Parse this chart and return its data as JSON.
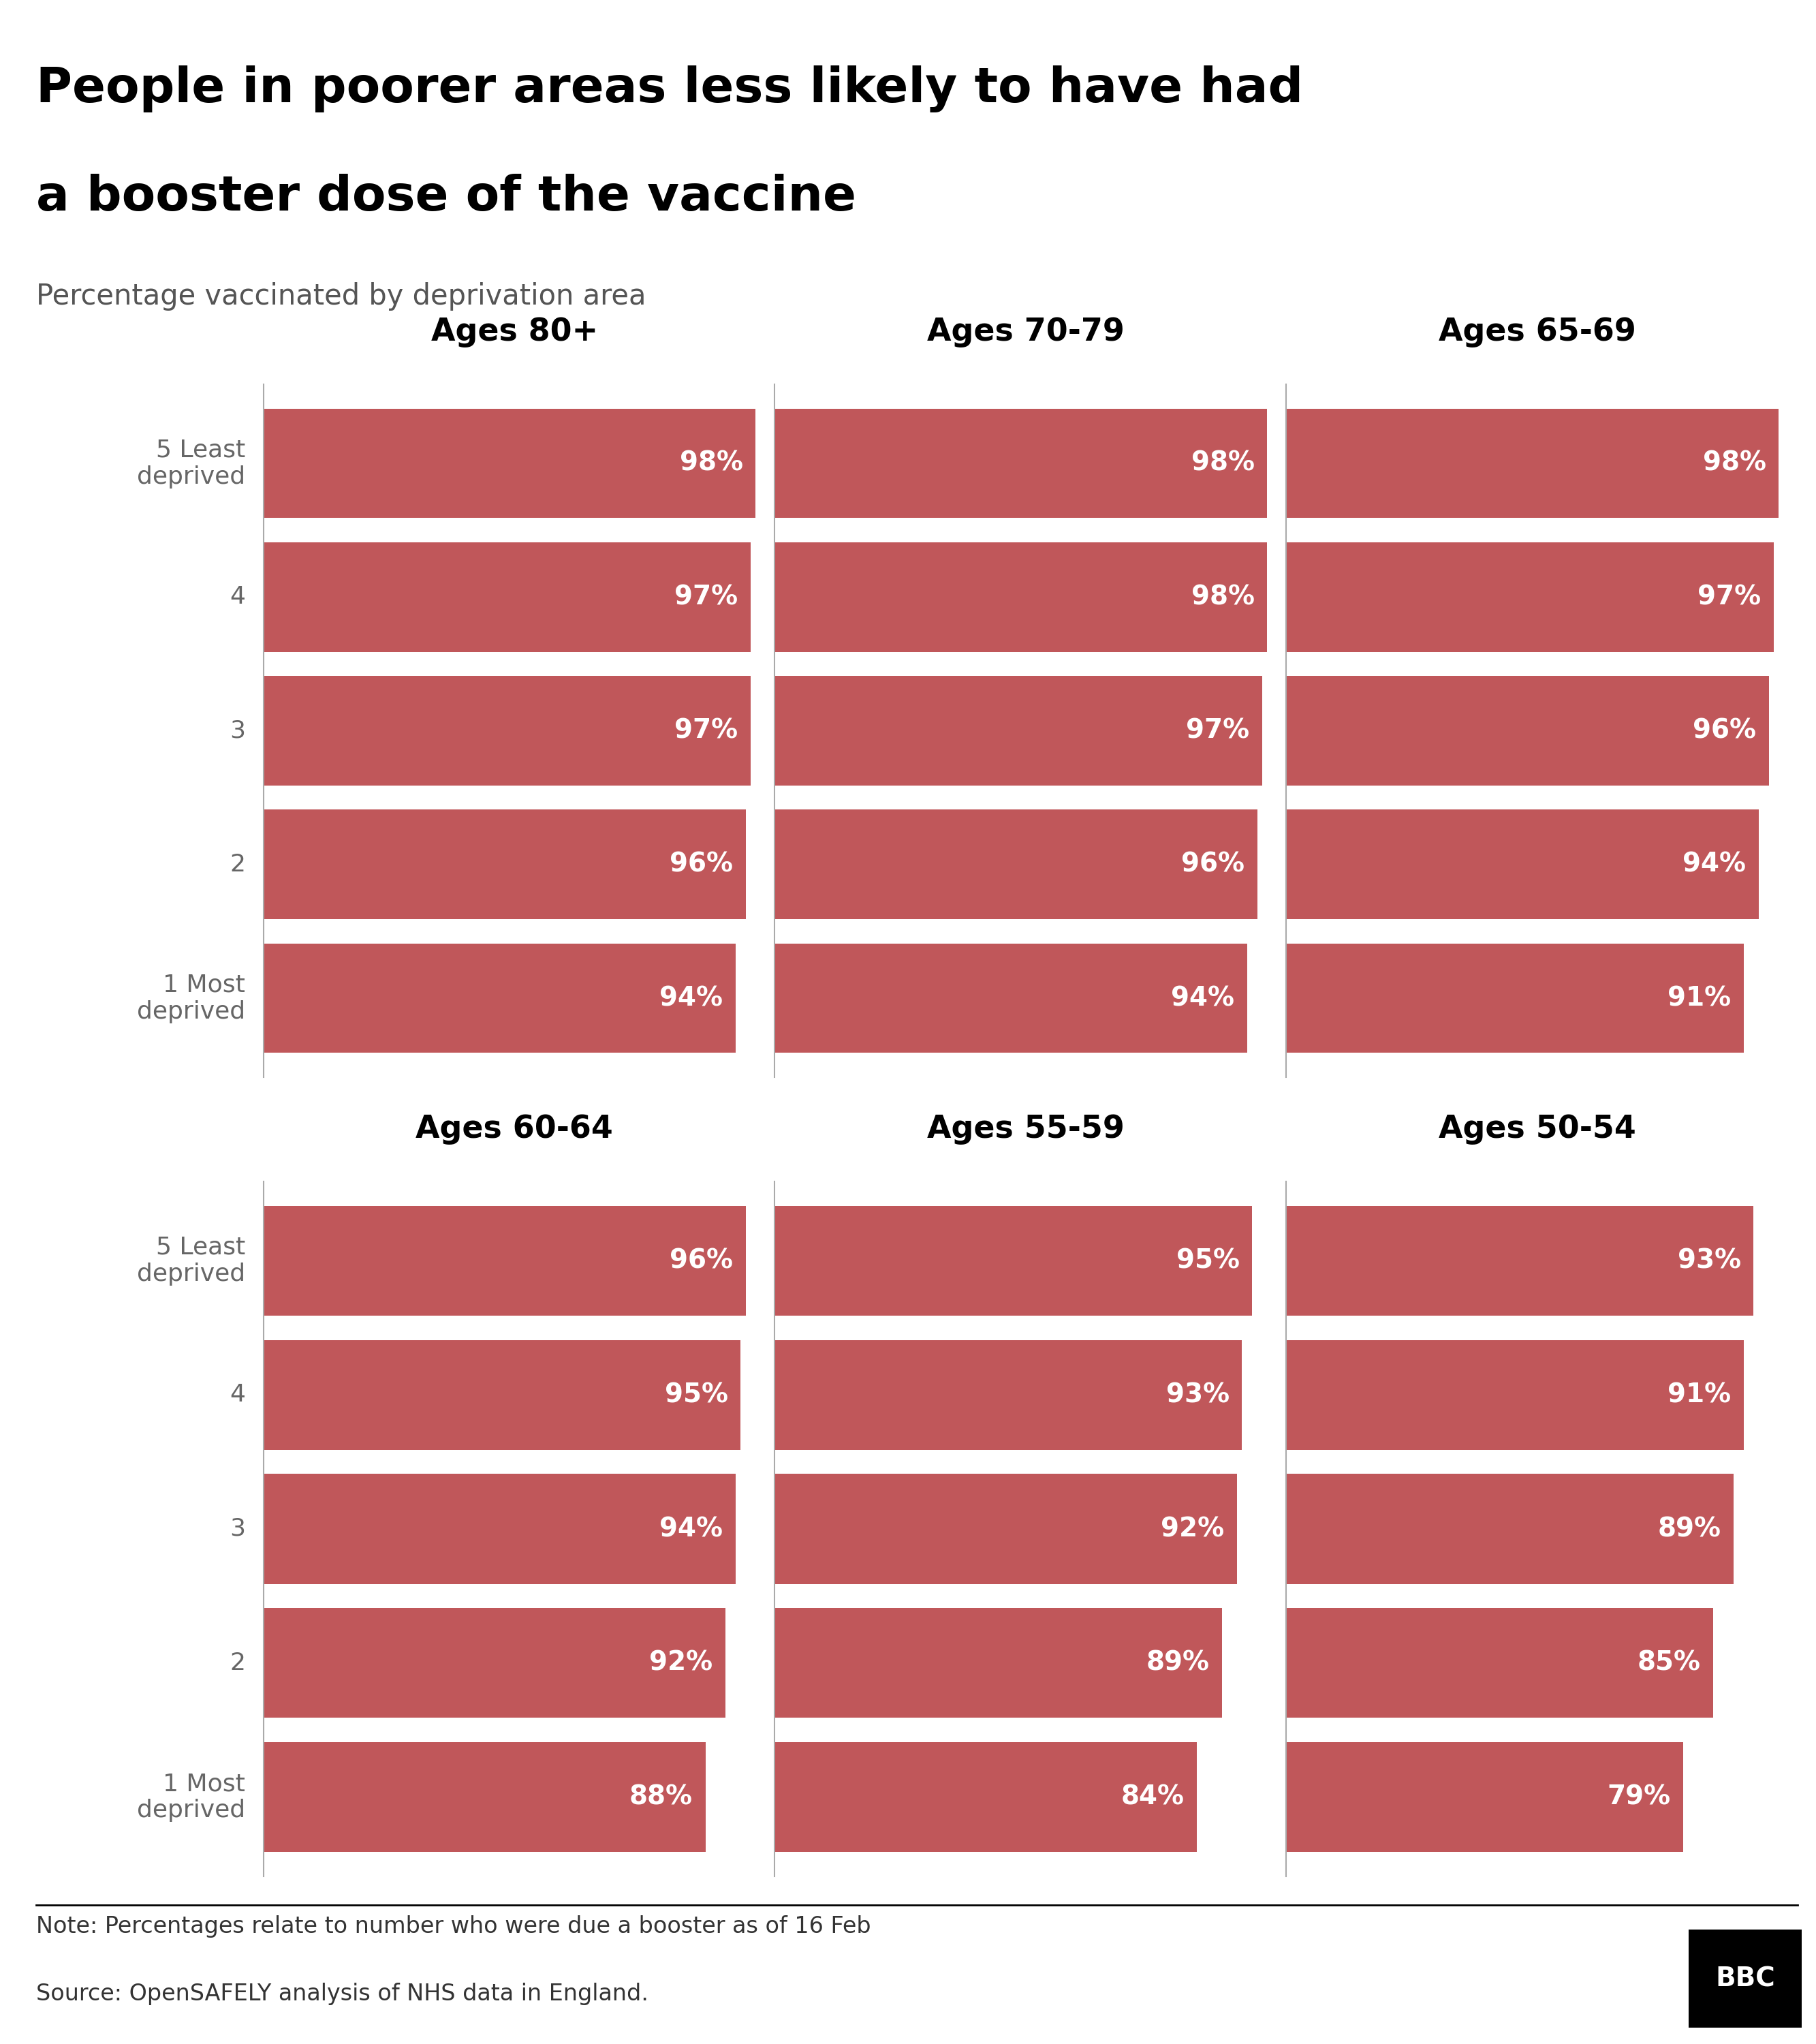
{
  "title_line1": "People in poorer areas less likely to have had",
  "title_line2": "a booster dose of the vaccine",
  "subtitle": "Percentage vaccinated by deprivation area",
  "note": "Note: Percentages relate to number who were due a booster as of 16 Feb",
  "source": "Source: OpenSAFELY analysis of NHS data in England.",
  "background_color": "#ffffff",
  "bar_color": "#c0575a",
  "groups": [
    {
      "title": "Ages 80+",
      "values": [
        98,
        97,
        97,
        96,
        94
      ],
      "row": 0,
      "col": 0
    },
    {
      "title": "Ages 70-79",
      "values": [
        98,
        98,
        97,
        96,
        94
      ],
      "row": 0,
      "col": 1
    },
    {
      "title": "Ages 65-69",
      "values": [
        98,
        97,
        96,
        94,
        91
      ],
      "row": 0,
      "col": 2
    },
    {
      "title": "Ages 60-64",
      "values": [
        96,
        95,
        94,
        92,
        88
      ],
      "row": 1,
      "col": 0
    },
    {
      "title": "Ages 55-59",
      "values": [
        95,
        93,
        92,
        89,
        84
      ],
      "row": 1,
      "col": 1
    },
    {
      "title": "Ages 50-54",
      "values": [
        93,
        91,
        89,
        85,
        79
      ],
      "row": 1,
      "col": 2
    }
  ],
  "y_labels": [
    "5 Least\ndeprived",
    "4",
    "3",
    "2",
    "1 Most\ndeprived"
  ],
  "title_fontsize": 52,
  "subtitle_fontsize": 30,
  "group_title_fontsize": 33,
  "bar_label_fontsize": 28,
  "y_label_fontsize": 26,
  "note_fontsize": 24,
  "source_fontsize": 24,
  "bbc_fontsize": 28
}
